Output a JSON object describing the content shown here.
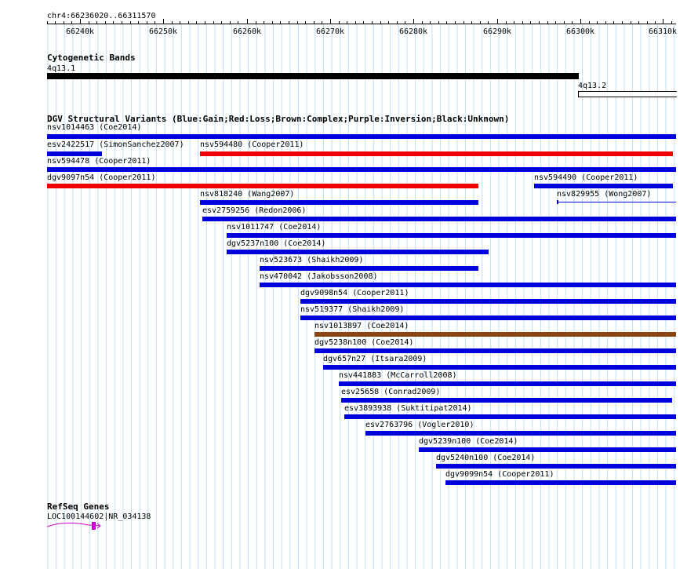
{
  "ruler": {
    "location": "chr4:66236020..66311570",
    "ticks": [
      "66240k",
      "66250k",
      "66260k",
      "66270k",
      "66280k",
      "66290k",
      "66300k",
      "66310k"
    ]
  },
  "cytobands": {
    "title": "Cytogenetic Bands",
    "bands": [
      {
        "name": "4q13.1",
        "color": "#000000"
      },
      {
        "name": "4q13.2",
        "color": "#ffffff"
      }
    ]
  },
  "dgv": {
    "title": "DGV Structural Variants (Blue:Gain;Red:Loss;Brown:Complex;Purple:Inversion;Black:Unknown)",
    "colors": {
      "gain": "#0000dd",
      "loss": "#ee0000",
      "complex": "#8b4513"
    },
    "variants": [
      {
        "label": "nsv1014463 (Coe2014)",
        "type": "gain"
      },
      {
        "label": "esv2422517 (SimonSanchez2007)",
        "type": "gain"
      },
      {
        "label": "nsv594480 (Cooper2011)",
        "type": "loss"
      },
      {
        "label": "nsv594478 (Cooper2011)",
        "type": "gain"
      },
      {
        "label": "dgv9097n54 (Cooper2011)",
        "type": "loss"
      },
      {
        "label": "nsv594490 (Cooper2011)",
        "type": "gain"
      },
      {
        "label": "nsv818240 (Wang2007)",
        "type": "gain"
      },
      {
        "label": "nsv829955 (Wong2007)",
        "type": "gain"
      },
      {
        "label": "esv2759256 (Redon2006)",
        "type": "gain"
      },
      {
        "label": "nsv1011747 (Coe2014)",
        "type": "gain"
      },
      {
        "label": "dgv5237n100 (Coe2014)",
        "type": "gain"
      },
      {
        "label": "nsv523673 (Shaikh2009)",
        "type": "gain"
      },
      {
        "label": "nsv470042 (Jakobsson2008)",
        "type": "gain"
      },
      {
        "label": "dgv9098n54 (Cooper2011)",
        "type": "gain"
      },
      {
        "label": "nsv519377 (Shaikh2009)",
        "type": "gain"
      },
      {
        "label": "nsv1013897 (Coe2014)",
        "type": "complex"
      },
      {
        "label": "dgv5238n100 (Coe2014)",
        "type": "gain"
      },
      {
        "label": "dgv657n27 (Itsara2009)",
        "type": "gain"
      },
      {
        "label": "nsv441883 (McCarroll2008)",
        "type": "gain"
      },
      {
        "label": "esv25658 (Conrad2009)",
        "type": "gain"
      },
      {
        "label": "esv3893938 (Suktitipat2014)",
        "type": "gain"
      },
      {
        "label": "esv2763796 (Vogler2010)",
        "type": "gain"
      },
      {
        "label": "dgv5239n100 (Coe2014)",
        "type": "gain"
      },
      {
        "label": "dgv5240n100 (Coe2014)",
        "type": "gain"
      },
      {
        "label": "dgv9099n54 (Cooper2011)",
        "type": "gain"
      }
    ]
  },
  "refseq": {
    "title": "RefSeq Genes",
    "genes": [
      {
        "label": "LOC100144602|NR_034138",
        "color": "#cc00cc"
      }
    ]
  }
}
